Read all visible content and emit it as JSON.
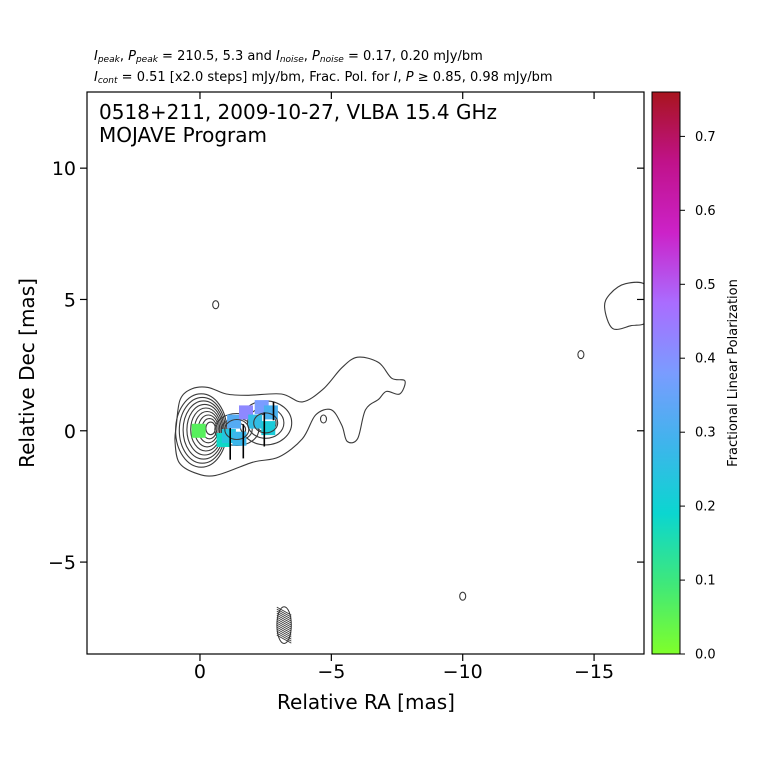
{
  "header": {
    "line1": {
      "peak_values": "210.5, 5.3",
      "noise_values": "0.17, 0.20 mJy/bm"
    },
    "line2": {
      "cont_text": "= 0.51 [x2.0 steps] mJy/bm, Frac. Pol. for",
      "thresholds": "0.85, 0.98 mJy/bm"
    }
  },
  "annotation": {
    "line1": "0518+211, 2009-10-27, VLBA 15.4 GHz",
    "line2": "MOJAVE Program"
  },
  "chart_data": {
    "type": "contour",
    "xlabel": "Relative RA [mas]",
    "ylabel": "Relative Dec [mas]",
    "xlim": [
      4.3,
      -16.9
    ],
    "ylim": [
      -8.5,
      12.9
    ],
    "x_ticks": [
      0,
      -5,
      -10,
      -15
    ],
    "x_tick_labels": [
      "0",
      "−5",
      "−10",
      "−15"
    ],
    "y_ticks": [
      -5,
      0,
      5,
      10
    ],
    "y_tick_labels": [
      "−5",
      "0",
      "5",
      "10"
    ],
    "grid": false,
    "stats": {
      "I_peak_mJy_per_beam": 210.5,
      "P_peak_mJy_per_beam": 5.3,
      "I_noise_mJy_per_beam": 0.17,
      "P_noise_mJy_per_beam": 0.2,
      "I_cont_base_mJy_per_beam": 0.51,
      "contour_step_factor": 2.0,
      "frac_pol_cut_I_mJy_per_beam": 0.85,
      "frac_pol_cut_P_mJy_per_beam": 0.98
    },
    "core": {
      "x": 0,
      "y": 0
    },
    "contour_levels_count": 10,
    "outer_contour": [
      [
        0.9,
        0.2
      ],
      [
        0.75,
        1.2
      ],
      [
        0.3,
        1.6
      ],
      [
        -0.3,
        1.65
      ],
      [
        -1.0,
        1.4
      ],
      [
        -1.8,
        1.35
      ],
      [
        -3.1,
        1.4
      ],
      [
        -3.9,
        1.1
      ],
      [
        -4.7,
        1.6
      ],
      [
        -5.4,
        2.4
      ],
      [
        -6.0,
        2.8
      ],
      [
        -6.8,
        2.6
      ],
      [
        -7.3,
        2.0
      ],
      [
        -7.8,
        1.9
      ],
      [
        -7.6,
        1.4
      ],
      [
        -7.1,
        1.5
      ],
      [
        -6.8,
        1.2
      ],
      [
        -6.3,
        0.8
      ],
      [
        -6.0,
        -0.3
      ],
      [
        -5.6,
        -0.4
      ],
      [
        -5.4,
        0.2
      ],
      [
        -5.0,
        0.8
      ],
      [
        -4.4,
        0.6
      ],
      [
        -3.9,
        -0.3
      ],
      [
        -3.0,
        -1.0
      ],
      [
        -2.0,
        -1.2
      ],
      [
        -0.6,
        -1.7
      ],
      [
        0.2,
        -1.6
      ],
      [
        0.8,
        -1.2
      ],
      [
        0.95,
        -0.4
      ]
    ],
    "jet_knots": [
      {
        "x": 0,
        "y": 0
      },
      {
        "x": -1.4,
        "y": 0.05
      },
      {
        "x": -2.5,
        "y": 0.3
      }
    ],
    "isolated_contours": [
      {
        "x": -0.6,
        "y": 4.8
      },
      {
        "x": -4.7,
        "y": 0.45
      },
      {
        "x": -14.5,
        "y": 2.9
      },
      {
        "x": -10.0,
        "y": -6.3
      }
    ],
    "edge_contour": [
      [
        -17.0,
        5.5
      ],
      [
        -16.2,
        5.6
      ],
      [
        -15.6,
        5.2
      ],
      [
        -15.4,
        4.7
      ],
      [
        -15.7,
        3.9
      ],
      [
        -16.4,
        4.0
      ],
      [
        -17.0,
        4.2
      ]
    ],
    "fractional_polarization": [
      {
        "x": 0.05,
        "y": 0.0,
        "value": 0.06
      },
      {
        "x": -0.9,
        "y": -0.35,
        "value": 0.18
      },
      {
        "x": -1.1,
        "y": -0.2,
        "value": 0.24
      },
      {
        "x": -1.3,
        "y": 0.35,
        "value": 0.32
      },
      {
        "x": -1.75,
        "y": 0.7,
        "value": 0.42
      },
      {
        "x": -1.5,
        "y": -0.3,
        "value": 0.28
      },
      {
        "x": -2.1,
        "y": 0.35,
        "value": 0.26
      },
      {
        "x": -2.35,
        "y": 0.9,
        "value": 0.38
      },
      {
        "x": -2.6,
        "y": 0.1,
        "value": 0.22
      },
      {
        "x": -2.7,
        "y": 0.7,
        "value": 0.3
      }
    ],
    "evpa_ticks": [
      {
        "x": -1.15,
        "y": -0.5,
        "len": 1.2
      },
      {
        "x": -1.65,
        "y": -0.4,
        "len": 1.3
      },
      {
        "x": -2.45,
        "y": 0.05,
        "len": 1.3
      },
      {
        "x": -2.8,
        "y": 0.75,
        "len": 0.7
      }
    ],
    "beam": {
      "x": -3.2,
      "y": -7.4,
      "major_mas": 1.1,
      "minor_mas": 0.55,
      "pa_deg": 0
    },
    "colorbar": {
      "label": "Fractional Linear Polarization",
      "range": [
        0.0,
        0.76
      ],
      "ticks": [
        0.0,
        0.1,
        0.2,
        0.3,
        0.4,
        0.5,
        0.6,
        0.7
      ],
      "tick_labels": [
        "0.0",
        "0.1",
        "0.2",
        "0.3",
        "0.4",
        "0.5",
        "0.6",
        "0.7"
      ],
      "colormap": [
        "#7fff2a",
        "#3fe87a",
        "#0bd6d0",
        "#3fb4ec",
        "#7a9cff",
        "#aa6cff",
        "#cc22c8",
        "#c0128a",
        "#a8141e"
      ]
    }
  }
}
